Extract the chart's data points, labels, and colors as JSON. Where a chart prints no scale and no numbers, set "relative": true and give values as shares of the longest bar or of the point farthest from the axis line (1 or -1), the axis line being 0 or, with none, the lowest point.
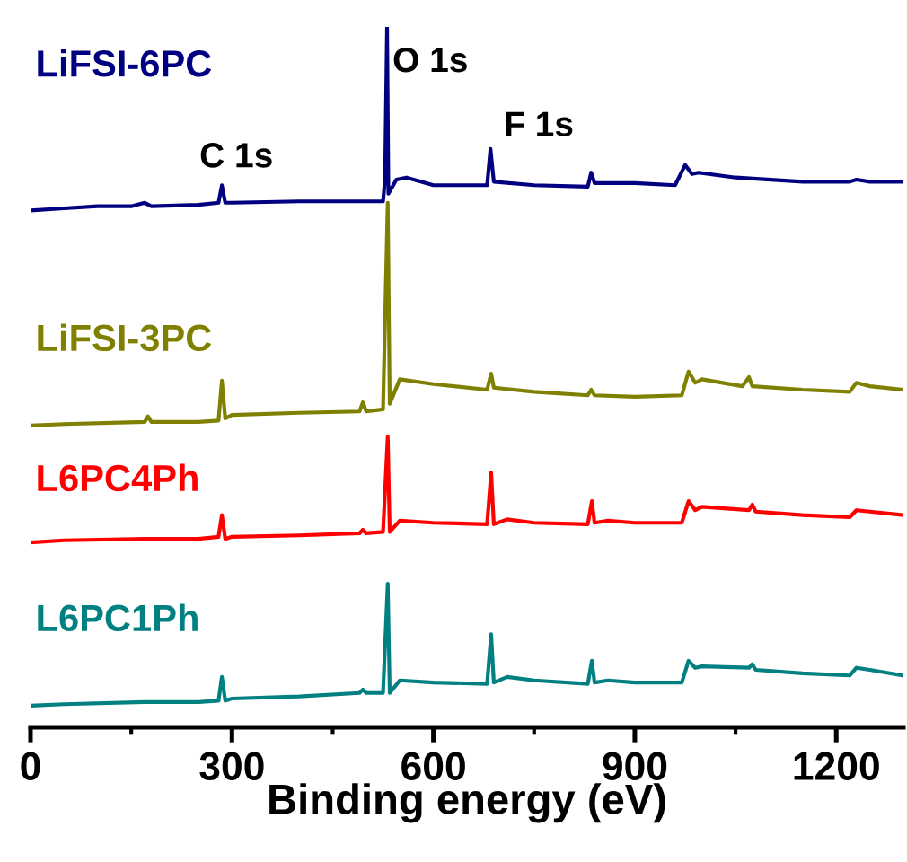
{
  "chart_data": {
    "type": "line",
    "relative": true,
    "xlabel": "Binding energy (eV)",
    "xlim": [
      0,
      1300
    ],
    "xticks": [
      0,
      300,
      600,
      900,
      1200
    ],
    "grid": false,
    "legend": false,
    "marker": "none",
    "line_style": "solid",
    "annotations": [
      {
        "text": "C 1s",
        "x": 285,
        "y": 0.774
      },
      {
        "text": "O 1s",
        "x": 531,
        "y": 1
      },
      {
        "text": "F 1s",
        "x": 685,
        "y": 0.826
      }
    ],
    "series": [
      {
        "name": "LiFSI-6PC",
        "color": "#000080",
        "x": [
          0,
          50,
          100,
          150,
          170,
          180,
          250,
          280,
          285,
          290,
          300,
          400,
          500,
          525,
          528,
          531,
          533,
          545,
          560,
          600,
          680,
          685,
          690,
          750,
          830,
          835,
          840,
          900,
          960,
          975,
          985,
          995,
          1050,
          1150,
          1220,
          1230,
          1250,
          1300
        ],
        "values": [
          0.738,
          0.741,
          0.744,
          0.744,
          0.749,
          0.744,
          0.746,
          0.749,
          0.774,
          0.749,
          0.749,
          0.751,
          0.751,
          0.751,
          0.782,
          1,
          0.762,
          0.782,
          0.785,
          0.774,
          0.774,
          0.826,
          0.779,
          0.774,
          0.772,
          0.792,
          0.777,
          0.777,
          0.774,
          0.803,
          0.79,
          0.792,
          0.785,
          0.779,
          0.779,
          0.782,
          0.779,
          0.779
        ]
      },
      {
        "name": "LiFSI-3PC",
        "color": "#808000",
        "x": [
          0,
          50,
          170,
          175,
          180,
          250,
          280,
          285,
          290,
          300,
          400,
          490,
          495,
          500,
          525,
          532,
          535,
          550,
          600,
          680,
          686,
          690,
          750,
          830,
          835,
          840,
          900,
          970,
          980,
          990,
          1000,
          1060,
          1070,
          1075,
          1150,
          1220,
          1230,
          1250,
          1300
        ],
        "values": [
          0.431,
          0.433,
          0.436,
          0.444,
          0.436,
          0.436,
          0.438,
          0.495,
          0.441,
          0.446,
          0.449,
          0.451,
          0.464,
          0.451,
          0.454,
          0.749,
          0.462,
          0.497,
          0.49,
          0.482,
          0.505,
          0.485,
          0.479,
          0.474,
          0.482,
          0.474,
          0.472,
          0.474,
          0.508,
          0.492,
          0.497,
          0.487,
          0.5,
          0.487,
          0.482,
          0.479,
          0.492,
          0.487,
          0.482
        ]
      },
      {
        "name": "L6PC4Ph",
        "color": "#ff0000",
        "x": [
          0,
          50,
          170,
          250,
          280,
          285,
          290,
          300,
          400,
          490,
          495,
          500,
          525,
          532,
          535,
          550,
          600,
          680,
          686,
          690,
          710,
          750,
          830,
          836,
          840,
          860,
          900,
          970,
          980,
          990,
          1000,
          1070,
          1075,
          1080,
          1150,
          1220,
          1230,
          1250,
          1300
        ],
        "values": [
          0.264,
          0.267,
          0.269,
          0.269,
          0.272,
          0.303,
          0.269,
          0.272,
          0.274,
          0.277,
          0.282,
          0.277,
          0.279,
          0.415,
          0.279,
          0.295,
          0.292,
          0.29,
          0.364,
          0.29,
          0.297,
          0.292,
          0.29,
          0.323,
          0.292,
          0.295,
          0.292,
          0.292,
          0.323,
          0.31,
          0.315,
          0.31,
          0.318,
          0.308,
          0.303,
          0.3,
          0.31,
          0.308,
          0.303
        ]
      },
      {
        "name": "L6PC1Ph",
        "color": "#008080",
        "x": [
          0,
          50,
          170,
          250,
          280,
          285,
          290,
          300,
          400,
          490,
          495,
          500,
          525,
          532,
          535,
          550,
          600,
          680,
          686,
          690,
          710,
          750,
          830,
          836,
          840,
          860,
          900,
          970,
          980,
          990,
          1000,
          1070,
          1075,
          1080,
          1150,
          1220,
          1230,
          1250,
          1300
        ],
        "values": [
          0.031,
          0.033,
          0.036,
          0.036,
          0.038,
          0.072,
          0.038,
          0.041,
          0.044,
          0.049,
          0.054,
          0.049,
          0.049,
          0.205,
          0.049,
          0.067,
          0.064,
          0.062,
          0.133,
          0.064,
          0.072,
          0.067,
          0.062,
          0.095,
          0.064,
          0.067,
          0.064,
          0.064,
          0.095,
          0.085,
          0.087,
          0.085,
          0.09,
          0.082,
          0.077,
          0.074,
          0.085,
          0.082,
          0.074
        ]
      }
    ]
  }
}
